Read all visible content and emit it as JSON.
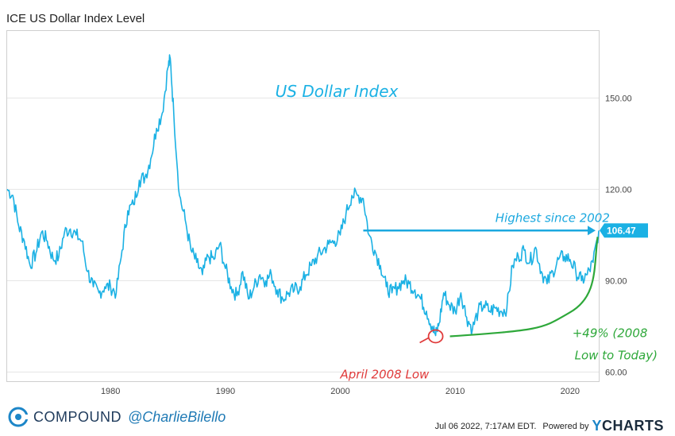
{
  "title": "ICE US Dollar Index Level",
  "footer": {
    "brand": "COMPOUND",
    "handle": "@CharlieBilello",
    "timestamp": "Jul 06 2022, 7:17AM EDT.",
    "powered_by": "Powered by",
    "ycharts_y": "Y",
    "ycharts_rest": "CHARTS"
  },
  "colors": {
    "series": "#1bb1e4",
    "annotation_blue": "#1ba8df",
    "annotation_green": "#2ea83a",
    "annotation_red": "#e03b3b",
    "gridline": "#e5e5e5"
  },
  "chart_data": {
    "type": "line",
    "title": "US Dollar Index",
    "xlabel": "",
    "ylabel": "",
    "xlim": [
      1971,
      2022.5
    ],
    "ylim": [
      57,
      172
    ],
    "x_ticks": [
      1980,
      1990,
      2000,
      2010,
      2020
    ],
    "y_ticks": [
      60,
      90,
      120,
      150
    ],
    "y_tick_labels": [
      "60.00",
      "90.00",
      "120.00",
      "150.00"
    ],
    "last_value_label": "106.47",
    "series": [
      {
        "name": "ICE US Dollar Index",
        "x": [
          1971.0,
          1971.5,
          1972.0,
          1972.5,
          1973.0,
          1973.5,
          1974.0,
          1974.5,
          1975.0,
          1975.5,
          1976.0,
          1976.5,
          1977.0,
          1977.5,
          1978.0,
          1978.5,
          1979.0,
          1979.5,
          1980.0,
          1980.5,
          1981.0,
          1981.5,
          1982.0,
          1982.5,
          1983.0,
          1983.5,
          1984.0,
          1984.5,
          1985.0,
          1985.2,
          1985.5,
          1986.0,
          1986.5,
          1987.0,
          1987.5,
          1988.0,
          1988.5,
          1989.0,
          1989.5,
          1990.0,
          1990.5,
          1991.0,
          1991.5,
          1992.0,
          1992.5,
          1993.0,
          1993.5,
          1994.0,
          1994.5,
          1995.0,
          1995.5,
          1996.0,
          1996.5,
          1997.0,
          1997.5,
          1998.0,
          1998.5,
          1999.0,
          1999.5,
          2000.0,
          2000.5,
          2001.0,
          2001.5,
          2002.0,
          2002.5,
          2003.0,
          2003.5,
          2004.0,
          2004.5,
          2005.0,
          2005.5,
          2006.0,
          2006.5,
          2007.0,
          2007.5,
          2008.0,
          2008.3,
          2008.6,
          2009.0,
          2009.5,
          2010.0,
          2010.5,
          2011.0,
          2011.5,
          2012.0,
          2012.5,
          2013.0,
          2013.5,
          2014.0,
          2014.5,
          2015.0,
          2015.5,
          2016.0,
          2016.5,
          2017.0,
          2017.5,
          2018.0,
          2018.5,
          2019.0,
          2019.5,
          2020.0,
          2020.5,
          2021.0,
          2021.5,
          2022.0,
          2022.5
        ],
        "values": [
          120,
          118,
          108,
          103,
          95,
          99,
          106,
          103,
          97,
          98,
          106,
          107,
          105,
          103,
          93,
          88,
          86,
          88,
          88,
          86,
          100,
          113,
          115,
          123,
          124,
          130,
          140,
          145,
          160,
          163,
          145,
          118,
          110,
          100,
          96,
          92,
          98,
          97,
          102,
          94,
          88,
          85,
          93,
          84,
          88,
          92,
          90,
          92,
          87,
          84,
          86,
          87,
          88,
          92,
          95,
          98,
          100,
          102,
          103,
          105,
          112,
          118,
          118,
          117,
          105,
          100,
          95,
          88,
          86,
          88,
          90,
          89,
          87,
          84,
          80,
          75,
          72,
          76,
          86,
          82,
          80,
          86,
          78,
          74,
          80,
          82,
          80,
          81,
          80,
          81,
          95,
          98,
          100,
          96,
          101,
          93,
          89,
          93,
          97,
          98,
          97,
          93,
          90,
          92,
          96,
          106.47
        ]
      }
    ],
    "annotations": [
      {
        "text": "Highest since 2002"
      },
      {
        "text": "April 2008 Low"
      },
      {
        "text": "+49% (2008"
      },
      {
        "text": "Low to Today)"
      }
    ]
  }
}
